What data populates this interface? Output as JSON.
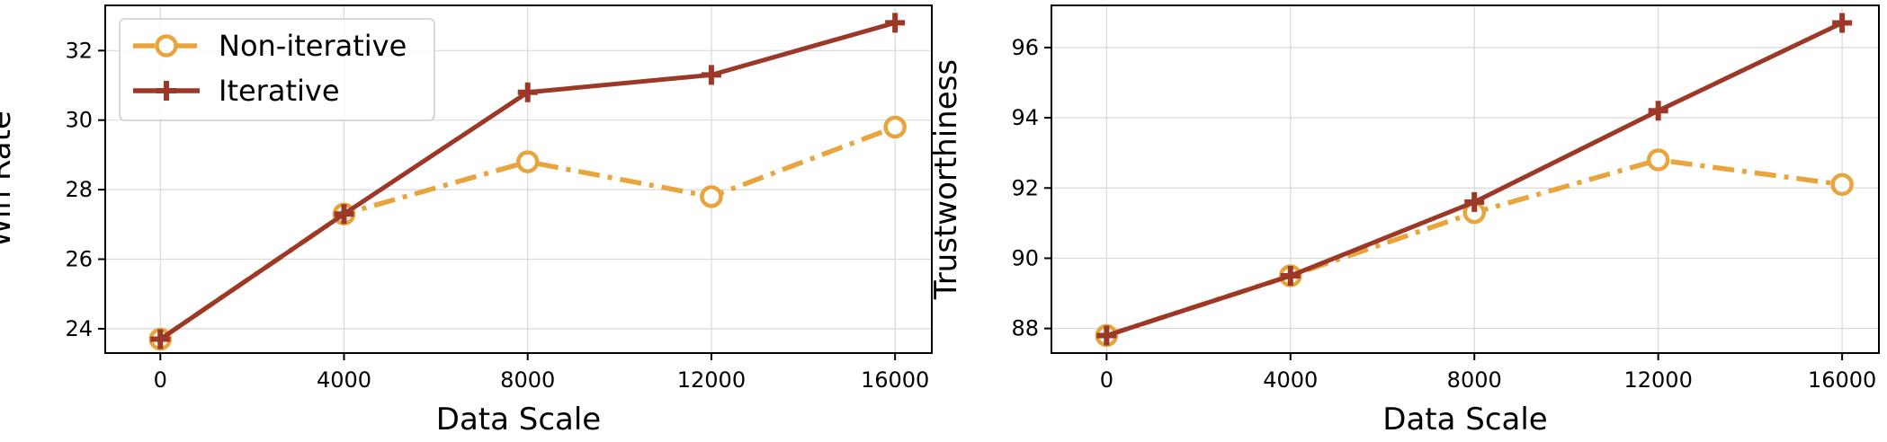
{
  "colors": {
    "non_iterative": "#E8A53E",
    "iterative": "#9B3828",
    "grid": "#d9d9d9",
    "axes": "#000000"
  },
  "chart_data": [
    {
      "type": "line",
      "xlabel": "Data Scale",
      "ylabel": "Win Rate",
      "x": [
        0,
        4000,
        8000,
        12000,
        16000
      ],
      "xticks": [
        "0",
        "4000",
        "8000",
        "12000",
        "16000"
      ],
      "xlim": [
        -1200,
        16800
      ],
      "yticks": [
        "24",
        "26",
        "28",
        "30",
        "32"
      ],
      "ylim": [
        23.3,
        33.3
      ],
      "grid": true,
      "legend": "top-left",
      "series": [
        {
          "name": "Non-iterative",
          "key": "non_iterative",
          "style": "dashdot",
          "marker": "circle",
          "values": [
            23.7,
            27.3,
            28.8,
            27.8,
            29.8
          ]
        },
        {
          "name": "Iterative",
          "key": "iterative",
          "style": "solid",
          "marker": "plus",
          "values": [
            23.7,
            27.3,
            30.8,
            31.3,
            32.8
          ]
        }
      ]
    },
    {
      "type": "line",
      "xlabel": "Data Scale",
      "ylabel": "Trustworthiness",
      "x": [
        0,
        4000,
        8000,
        12000,
        16000
      ],
      "xticks": [
        "0",
        "4000",
        "8000",
        "12000",
        "16000"
      ],
      "xlim": [
        -1200,
        16800
      ],
      "yticks": [
        "88",
        "90",
        "92",
        "94",
        "96"
      ],
      "ylim": [
        87.3,
        97.2
      ],
      "grid": true,
      "legend": "none",
      "series": [
        {
          "name": "Non-iterative",
          "key": "non_iterative",
          "style": "dashdot",
          "marker": "circle",
          "values": [
            87.8,
            89.5,
            91.3,
            92.8,
            92.1
          ]
        },
        {
          "name": "Iterative",
          "key": "iterative",
          "style": "solid",
          "marker": "plus",
          "values": [
            87.8,
            89.5,
            91.6,
            94.2,
            96.7
          ]
        }
      ]
    }
  ]
}
